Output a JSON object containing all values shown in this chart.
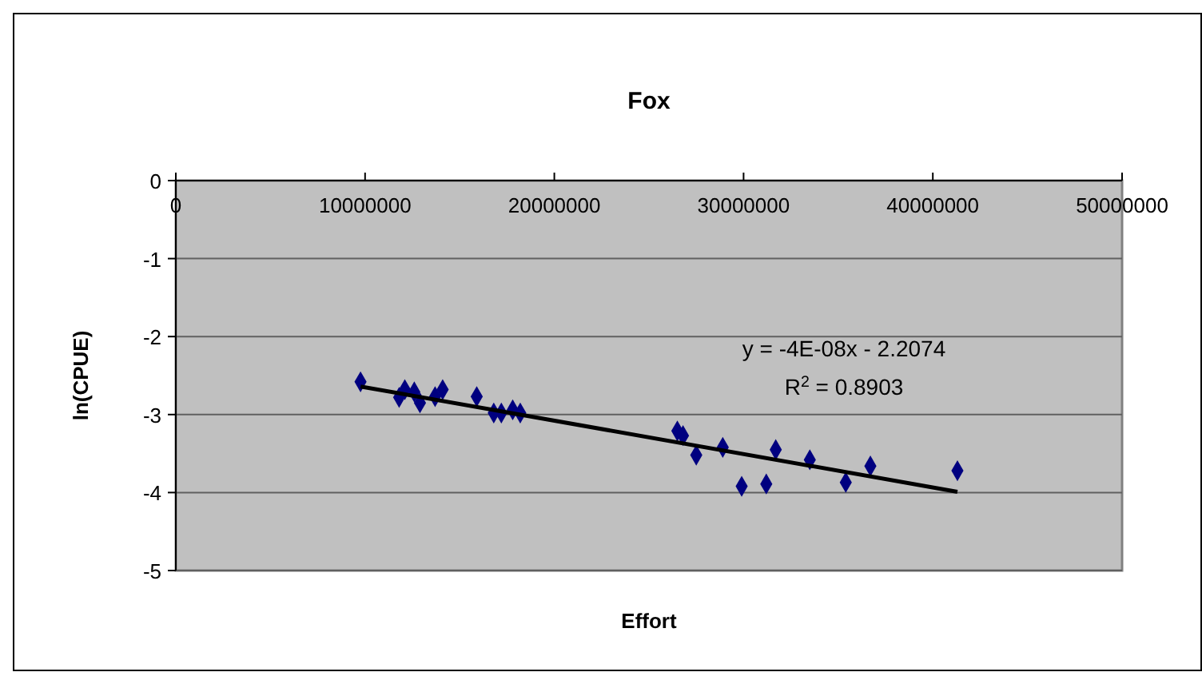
{
  "chart_data": {
    "type": "scatter",
    "title": "Fox",
    "xlabel": "Effort",
    "ylabel": "ln(CPUE)",
    "annotations": [
      "y = -4E-08x - 2.2074",
      "R$^{2}$ = 0.8903"
    ],
    "xlim": [
      0,
      50000000
    ],
    "xticks": [
      0,
      10000000,
      20000000,
      30000000,
      40000000,
      50000000
    ],
    "ylim": [
      -5,
      0
    ],
    "yticks": [
      -5,
      -4,
      -3,
      -2,
      -1,
      0
    ],
    "grid": "y",
    "marker": "diamond",
    "series": [
      {
        "color": "#000080",
        "x": [
          9760000,
          11800000,
          12100000,
          12600000,
          12900000,
          13700000,
          14100000,
          15900000,
          16800000,
          17200000,
          17800000,
          18200000,
          26500000,
          26800000,
          27500000,
          28900000,
          29900000,
          31200000,
          31700000,
          33500000,
          35400000,
          36700000,
          41300000
        ],
        "values": [
          -2.58,
          -2.78,
          -2.68,
          -2.71,
          -2.85,
          -2.77,
          -2.68,
          -2.77,
          -2.98,
          -2.98,
          -2.94,
          -2.98,
          -3.21,
          -3.27,
          -3.52,
          -3.42,
          -3.92,
          -3.89,
          -3.45,
          -3.58,
          -3.87,
          -3.66,
          -3.72
        ]
      },
      {
        "type": "line",
        "marker": "none",
        "color": "#000000",
        "x": [
          9760000,
          41300000
        ],
        "values": [
          -2.64,
          -3.99
        ]
      }
    ]
  }
}
